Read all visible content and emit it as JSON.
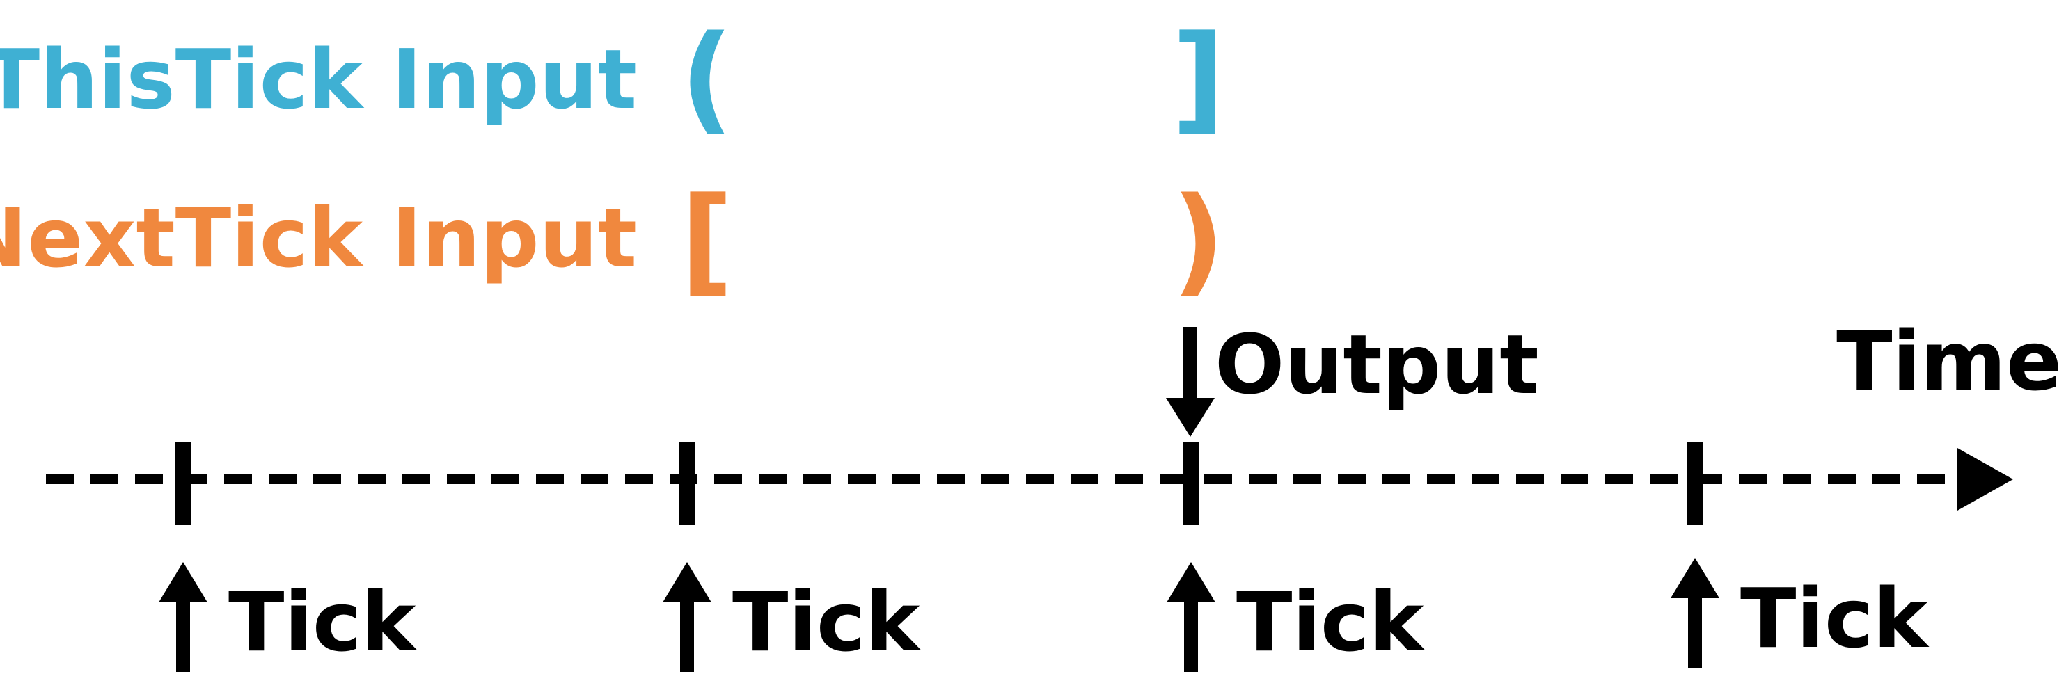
{
  "labels": {
    "this_tick_input": "ThisTick Input",
    "next_tick_input": "NextTick Input",
    "output": "Output",
    "time": "Time",
    "tick": "Tick"
  },
  "brackets": {
    "this_tick_open": "(",
    "this_tick_close": "]",
    "next_tick_open": "[",
    "next_tick_close": ")"
  },
  "ticks": [
    {
      "label": "Tick"
    },
    {
      "label": "Tick"
    },
    {
      "label": "Tick"
    },
    {
      "label": "Tick"
    }
  ],
  "colors": {
    "this_tick": "#3fb0d3",
    "next_tick": "#f0883e",
    "axis": "#000000",
    "background": "#ffffff"
  }
}
